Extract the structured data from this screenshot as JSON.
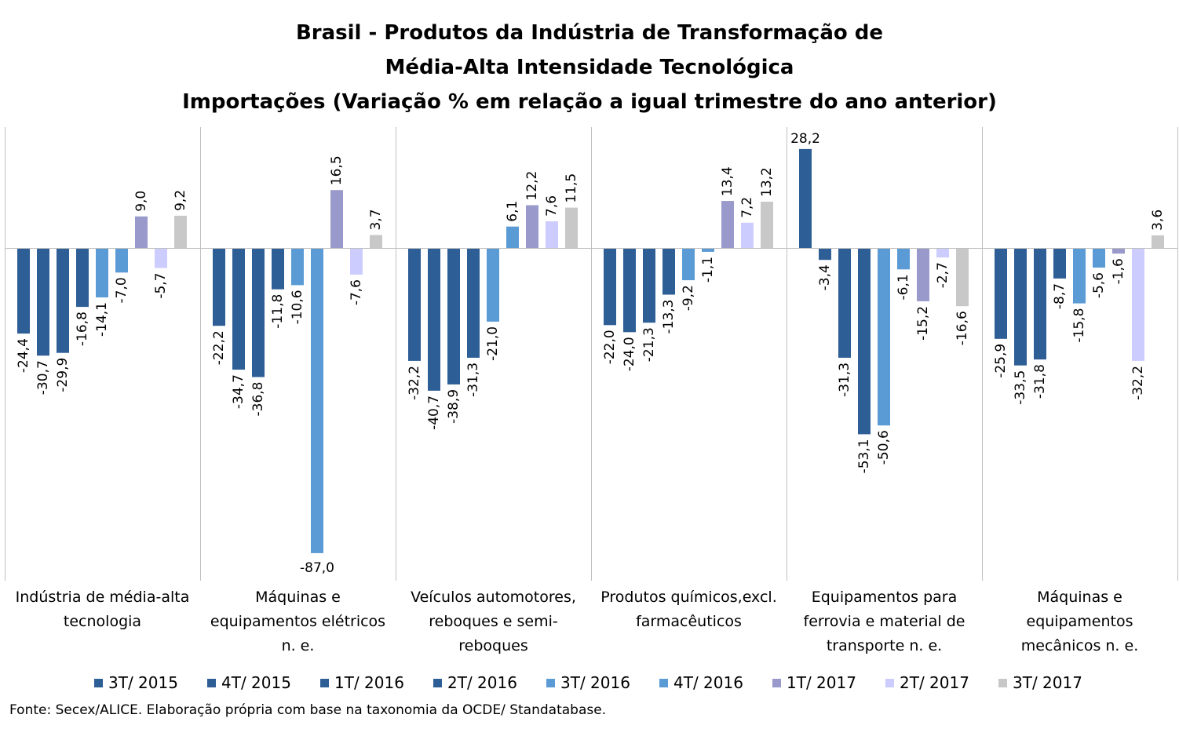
{
  "chart_data": {
    "type": "bar",
    "title_lines": [
      "Brasil - Produtos da Indústria de Transformação de",
      "Média-Alta Intensidade Tecnológica",
      "Importações (Variação % em relação a igual trimestre do ano anterior)"
    ],
    "categories": [
      "Indústria de média-alta tecnologia",
      "Máquinas e equipamentos elétricos n. e.",
      "Veículos automotores, reboques e semi-reboques",
      "Produtos químicos,excl. farmacêuticos",
      "Equipamentos para ferrovia e material de transporte n. e.",
      "Máquinas e equipamentos mecânicos  n. e."
    ],
    "series": [
      {
        "name": "3T/ 2015",
        "color": "#2E5E96",
        "values": [
          -24.4,
          -22.2,
          -32.2,
          -22.0,
          28.2,
          -25.9
        ],
        "labels": [
          "-24,4",
          "-22,2",
          "-32,2",
          "-22,0",
          "28,2",
          "-25,9"
        ]
      },
      {
        "name": "4T/ 2015",
        "color": "#2E5E96",
        "values": [
          -30.7,
          -34.7,
          -40.7,
          -24.0,
          -3.4,
          -33.5
        ],
        "labels": [
          "-30,7",
          "-34,7",
          "-40,7",
          "-24,0",
          "-3,4",
          "-33,5"
        ]
      },
      {
        "name": "1T/ 2016",
        "color": "#2E5E96",
        "values": [
          -29.9,
          -36.8,
          -38.9,
          -21.3,
          -31.3,
          -31.8
        ],
        "labels": [
          "-29,9",
          "-36,8",
          "-38,9",
          "-21,3",
          "-31,3",
          "-31,8"
        ]
      },
      {
        "name": "2T/ 2016",
        "color": "#2E5E96",
        "values": [
          -16.8,
          -11.8,
          -31.3,
          -13.3,
          -53.1,
          -8.7
        ],
        "labels": [
          "-16,8",
          "-11,8",
          "-31,3",
          "-13,3",
          "-53,1",
          "-8,7"
        ]
      },
      {
        "name": "3T/ 2016",
        "color": "#5B9BD5",
        "values": [
          -14.1,
          -10.6,
          -21.0,
          -9.2,
          -50.6,
          -15.8
        ],
        "labels": [
          "-14,1",
          "-10,6",
          "-21,0",
          "-9,2",
          "-50,6",
          "-15,8"
        ]
      },
      {
        "name": "4T/ 2016",
        "color": "#5B9BD5",
        "values": [
          -7.0,
          -87.0,
          6.1,
          -1.1,
          -6.1,
          -5.6
        ],
        "labels": [
          "-7,0",
          "-87,0",
          "6,1",
          "-1,1",
          "-6,1",
          "-5,6"
        ]
      },
      {
        "name": "1T/ 2017",
        "color": "#9999CC",
        "values": [
          9.0,
          16.5,
          12.2,
          13.4,
          -15.2,
          -1.6
        ],
        "labels": [
          "9,0",
          "16,5",
          "12,2",
          "13,4",
          "-15,2",
          "-1,6"
        ]
      },
      {
        "name": "2T/ 2017",
        "color": "#CCCCFF",
        "values": [
          -5.7,
          -7.6,
          7.6,
          7.2,
          -2.7,
          -32.2
        ],
        "labels": [
          "-5,7",
          "-7,6",
          "7,6",
          "7,2",
          "-2,7",
          "-32,2"
        ]
      },
      {
        "name": "3T/ 2017",
        "color": "#C8C8C8",
        "values": [
          9.2,
          3.7,
          11.5,
          13.2,
          -16.6,
          3.6
        ],
        "labels": [
          "9,2",
          "3,7",
          "11,5",
          "13,2",
          "-16,6",
          "3,6"
        ]
      }
    ],
    "ylim": [
      -87,
      28.2
    ],
    "grid": false,
    "legend_position": "bottom"
  },
  "source_note": "Fonte: Secex/ALICE. Elaboração própria com base na taxonomia da OCDE/ Standatabase."
}
